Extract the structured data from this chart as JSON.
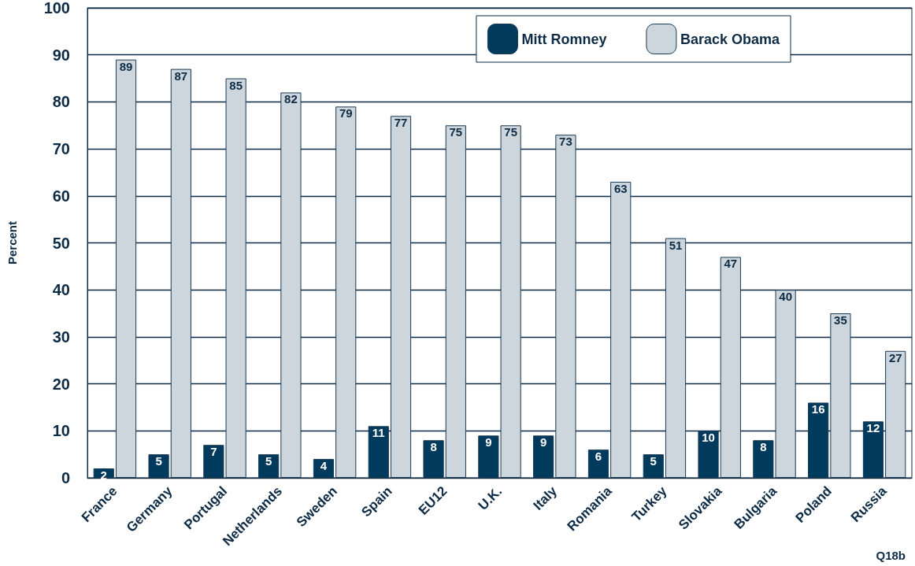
{
  "chart_data": {
    "type": "bar",
    "ylabel": "Percent",
    "categories": [
      "France",
      "Germany",
      "Portugal",
      "Netherlands",
      "Sweden",
      "Spain",
      "EU12",
      "U.K.",
      "Italy",
      "Romania",
      "Turkey",
      "Slovakia",
      "Bulgaria",
      "Poland",
      "Russia"
    ],
    "series": [
      {
        "name": "Mitt Romney",
        "color": "#003a5c",
        "values": [
          2,
          5,
          7,
          5,
          4,
          11,
          8,
          9,
          9,
          6,
          5,
          10,
          8,
          16,
          12
        ]
      },
      {
        "name": "Barack Obama",
        "color": "#cdd6dc",
        "values": [
          89,
          87,
          85,
          82,
          79,
          77,
          75,
          75,
          73,
          63,
          51,
          47,
          40,
          35,
          27
        ]
      }
    ],
    "ylim": [
      0,
      100
    ],
    "yticks": [
      0,
      10,
      20,
      30,
      40,
      50,
      60,
      70,
      80,
      90,
      100
    ],
    "grid": "y",
    "legend": "top right",
    "data_labels": true,
    "annotations": [
      "Q18b"
    ]
  }
}
